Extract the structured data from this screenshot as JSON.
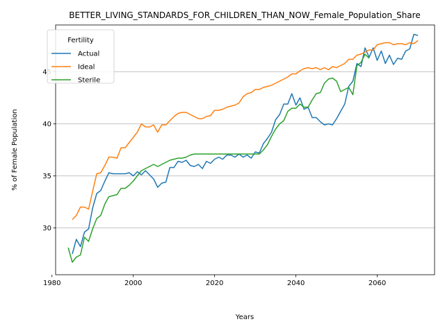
{
  "chart_data": {
    "type": "line",
    "title": "BETTER_LIVING_STANDARDS_FOR_CHILDREN_THAN_NOW_Female_Population_Share",
    "xlabel": "Years",
    "ylabel": "% of Female Population",
    "xlim": [
      1980.9,
      2074.1
    ],
    "ylim": [
      25.5,
      49.5
    ],
    "xticks": [
      1980,
      2000,
      2020,
      2040,
      2060
    ],
    "yticks": [
      30,
      35,
      40,
      45
    ],
    "grid": "y-only",
    "legend": {
      "title": "Fertility",
      "position": "top-left"
    },
    "series": [
      {
        "name": "Actual",
        "color": "#1f77b4",
        "x": [
          1985,
          1986,
          1987,
          1988,
          1989,
          1990,
          1991,
          1992,
          1993,
          1994,
          1995,
          1996,
          1997,
          1998,
          1999,
          2000,
          2001,
          2002,
          2003,
          2004,
          2005,
          2006,
          2007,
          2008,
          2009,
          2010,
          2011,
          2012,
          2013,
          2014,
          2015,
          2016,
          2017,
          2018,
          2019,
          2020,
          2021,
          2022,
          2023,
          2024,
          2025,
          2026,
          2027,
          2028,
          2029,
          2030,
          2031,
          2032,
          2033,
          2034,
          2035,
          2036,
          2037,
          2038,
          2039,
          2040,
          2041,
          2042,
          2043,
          2044,
          2045,
          2046,
          2047,
          2048,
          2049,
          2050,
          2051,
          2052,
          2053,
          2054,
          2055,
          2056,
          2057,
          2058,
          2059,
          2060,
          2061,
          2062,
          2063,
          2064,
          2065,
          2066,
          2067,
          2068,
          2069,
          2070
        ],
        "values": [
          27.5,
          28.9,
          28.2,
          29.6,
          29.9,
          31.9,
          33.3,
          33.6,
          34.5,
          35.3,
          35.2,
          35.2,
          35.2,
          35.2,
          35.3,
          35.0,
          35.4,
          35.1,
          35.5,
          35.1,
          34.7,
          33.9,
          34.3,
          34.4,
          35.8,
          35.8,
          36.4,
          36.3,
          36.5,
          36.0,
          35.9,
          36.1,
          35.7,
          36.4,
          36.2,
          36.6,
          36.8,
          36.6,
          37.0,
          37.0,
          36.8,
          37.1,
          36.8,
          37.0,
          36.7,
          37.3,
          37.2,
          38.1,
          38.6,
          39.2,
          40.4,
          40.9,
          41.9,
          41.9,
          42.9,
          41.8,
          42.5,
          41.4,
          41.6,
          40.6,
          40.6,
          40.2,
          39.9,
          40.0,
          39.9,
          40.5,
          41.2,
          41.9,
          43.6,
          44.1,
          45.8,
          45.5,
          47.3,
          46.4,
          47.3,
          46.1,
          47.0,
          45.8,
          46.6,
          45.7,
          46.3,
          46.2,
          47.0,
          47.2,
          48.6,
          48.5
        ]
      },
      {
        "name": "Ideal",
        "color": "#ff7f0e",
        "x": [
          1985,
          1986,
          1987,
          1988,
          1989,
          1990,
          1991,
          1992,
          1993,
          1994,
          1995,
          1996,
          1997,
          1998,
          1999,
          2000,
          2001,
          2002,
          2003,
          2004,
          2005,
          2006,
          2007,
          2008,
          2009,
          2010,
          2011,
          2012,
          2013,
          2014,
          2015,
          2016,
          2017,
          2018,
          2019,
          2020,
          2021,
          2022,
          2023,
          2024,
          2025,
          2026,
          2027,
          2028,
          2029,
          2030,
          2031,
          2032,
          2033,
          2034,
          2035,
          2036,
          2037,
          2038,
          2039,
          2040,
          2041,
          2042,
          2043,
          2044,
          2045,
          2046,
          2047,
          2048,
          2049,
          2050,
          2051,
          2052,
          2053,
          2054,
          2055,
          2056,
          2057,
          2058,
          2059,
          2060,
          2061,
          2062,
          2063,
          2064,
          2065,
          2066,
          2067,
          2068,
          2069,
          2070
        ],
        "values": [
          30.8,
          31.2,
          32.0,
          32.0,
          31.8,
          33.5,
          35.2,
          35.3,
          36.0,
          36.8,
          36.8,
          36.7,
          37.7,
          37.7,
          38.2,
          38.7,
          39.2,
          40.0,
          39.7,
          39.7,
          39.9,
          39.2,
          39.9,
          39.9,
          40.3,
          40.7,
          41.0,
          41.1,
          41.1,
          40.9,
          40.7,
          40.5,
          40.5,
          40.7,
          40.8,
          41.3,
          41.3,
          41.4,
          41.6,
          41.7,
          41.8,
          42.0,
          42.6,
          42.9,
          43.0,
          43.3,
          43.3,
          43.5,
          43.6,
          43.7,
          43.9,
          44.1,
          44.3,
          44.5,
          44.8,
          44.8,
          45.1,
          45.3,
          45.4,
          45.3,
          45.4,
          45.2,
          45.4,
          45.2,
          45.5,
          45.4,
          45.6,
          45.8,
          46.2,
          46.2,
          46.6,
          46.7,
          46.9,
          47.1,
          47.1,
          47.6,
          47.7,
          47.8,
          47.8,
          47.6,
          47.7,
          47.7,
          47.6,
          47.8,
          47.7,
          48.0
        ]
      },
      {
        "name": "Sterile",
        "color": "#2ca02c",
        "x": [
          1984,
          1985,
          1986,
          1987,
          1988,
          1989,
          1990,
          1991,
          1992,
          1993,
          1994,
          1995,
          1996,
          1997,
          1998,
          1999,
          2000,
          2001,
          2002,
          2003,
          2004,
          2005,
          2006,
          2007,
          2008,
          2009,
          2010,
          2011,
          2012,
          2013,
          2014,
          2015,
          2016,
          2017,
          2018,
          2019,
          2020,
          2021,
          2022,
          2023,
          2024,
          2025,
          2026,
          2027,
          2028,
          2029,
          2030,
          2031,
          2032,
          2033,
          2034,
          2035,
          2036,
          2037,
          2038,
          2039,
          2040,
          2041,
          2042,
          2043,
          2044,
          2045,
          2046,
          2047,
          2048,
          2049,
          2050,
          2051,
          2052,
          2053,
          2054,
          2055,
          2056,
          2057,
          2058
        ],
        "values": [
          28.1,
          26.7,
          27.2,
          27.4,
          29.1,
          28.7,
          29.9,
          30.9,
          31.2,
          32.3,
          33.0,
          33.1,
          33.2,
          33.8,
          33.8,
          34.1,
          34.5,
          35.0,
          35.5,
          35.7,
          35.9,
          36.1,
          35.9,
          36.1,
          36.3,
          36.5,
          36.6,
          36.7,
          36.7,
          36.8,
          37.0,
          37.1,
          37.1,
          37.1,
          37.1,
          37.1,
          37.1,
          37.1,
          37.1,
          37.1,
          37.1,
          37.1,
          37.1,
          37.1,
          37.1,
          37.1,
          37.1,
          37.1,
          37.5,
          38.0,
          38.8,
          39.5,
          40.0,
          40.3,
          41.2,
          41.5,
          41.5,
          41.9,
          41.6,
          41.6,
          42.3,
          42.9,
          43.0,
          43.9,
          44.3,
          44.4,
          44.1,
          43.1,
          43.3,
          43.5,
          42.8,
          45.6,
          45.9,
          46.7,
          46.3
        ]
      }
    ]
  }
}
